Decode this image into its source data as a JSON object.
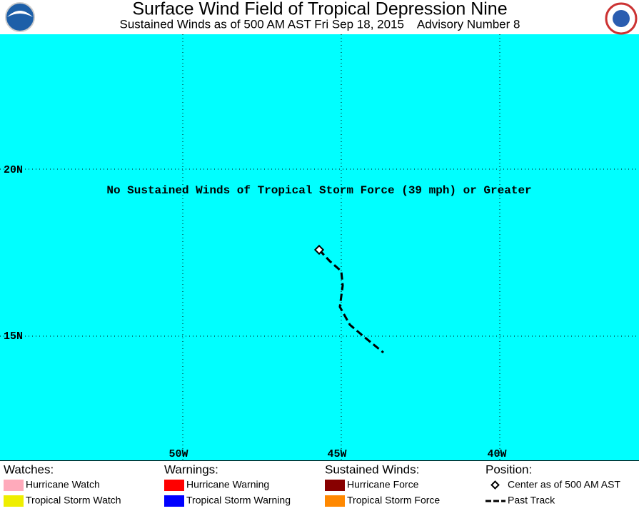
{
  "header": {
    "title": "Surface Wind Field of Tropical Depression Nine",
    "subtitle": "Sustained Winds as of 500 AM AST Fri Sep 18, 2015    Advisory Number 8"
  },
  "map": {
    "message": "No Sustained Winds of Tropical Storm Force (39 mph) or Greater",
    "lat_labels": [
      "20N",
      "15N"
    ],
    "lon_labels": [
      "50W",
      "45W",
      "40W"
    ]
  },
  "legend": {
    "sections": [
      {
        "heading": "Watches:",
        "items": [
          {
            "label": "Hurricane Watch",
            "color": "#ffaabb"
          },
          {
            "label": "Tropical Storm Watch",
            "color": "#eeee00"
          }
        ]
      },
      {
        "heading": "Warnings:",
        "items": [
          {
            "label": "Hurricane Warning",
            "color": "#ff0000"
          },
          {
            "label": "Tropical Storm Warning",
            "color": "#0000ff"
          }
        ]
      },
      {
        "heading": "Sustained Winds:",
        "items": [
          {
            "label": "Hurricane Force",
            "color": "#880000"
          },
          {
            "label": "Tropical Storm Force",
            "color": "#ff8800"
          }
        ]
      },
      {
        "heading": "Position:",
        "items": [
          {
            "label": "Center as of 500 AM AST",
            "marker": "diamond"
          },
          {
            "label": "Past Track",
            "marker": "dash"
          }
        ]
      }
    ]
  }
}
